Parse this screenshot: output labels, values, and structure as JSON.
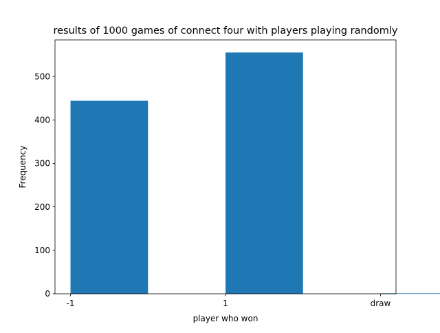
{
  "chart_data": {
    "type": "bar",
    "title": "results of 1000 games of connect four with players playing randomly",
    "xlabel": "player who won",
    "ylabel": "Frequency",
    "categories": [
      "-1",
      "1",
      "draw"
    ],
    "values": [
      444,
      555,
      1
    ],
    "ylim": [
      0,
      584
    ],
    "yticks": [
      0,
      100,
      200,
      300,
      400,
      500
    ],
    "grid": false,
    "legend": "none",
    "bar_color": "#1f77b4"
  }
}
